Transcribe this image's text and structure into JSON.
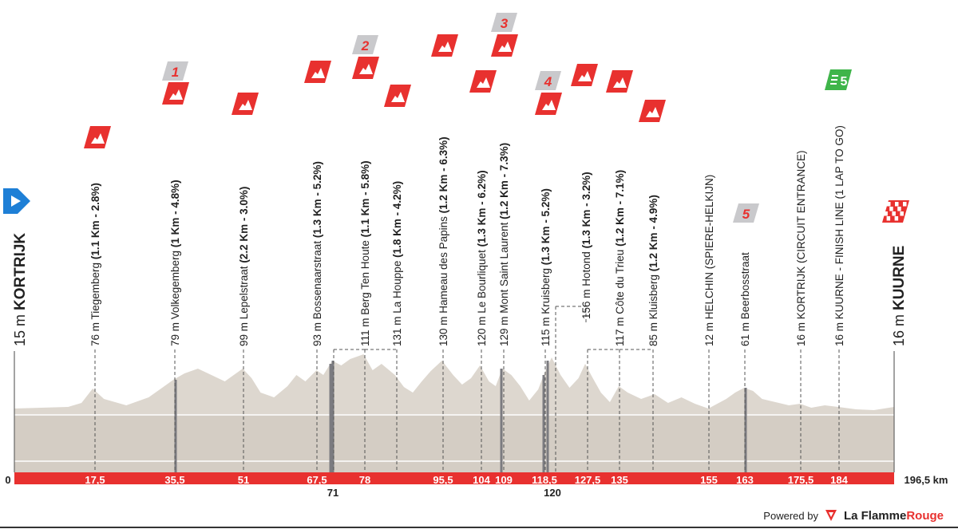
{
  "chart_data": {
    "type": "area",
    "title": "",
    "xlabel": "",
    "ylabel": "",
    "x_unit": "km",
    "xlim": [
      0,
      196.5
    ],
    "km_ticks": [
      "0",
      "17,5",
      "35,5",
      "51",
      "67,5",
      "71",
      "78",
      "95,5",
      "104",
      "109",
      "118,5",
      "120",
      "127,5",
      "135",
      "155",
      "163",
      "175,5",
      "184",
      "196,5 km"
    ],
    "start": {
      "altitude": "15 m",
      "name": "KORTRIJK"
    },
    "finish": {
      "altitude": "16 m",
      "name": "KUURNE"
    },
    "points": [
      {
        "km": 17.5,
        "text": "76 m Tiegemberg",
        "detail": "(1.1 Km - 2.8%)",
        "icon": "climb-flag-icon",
        "badge": ""
      },
      {
        "km": 35.5,
        "text": "79 m Volkegemberg",
        "detail": "(1 Km - 4.8%)",
        "icon": "climb-flag-icon",
        "badge": "1"
      },
      {
        "km": 51,
        "text": "99 m Lepelstraat",
        "detail": "(2.2 Km - 3.0%)",
        "icon": "climb-flag-icon",
        "badge": ""
      },
      {
        "km": 67.5,
        "text": "93 m Bossenaarstraat",
        "detail": "(1.3 Km - 5.2%)",
        "icon": "climb-flag-icon",
        "badge": ""
      },
      {
        "km": 78,
        "text": "111 m Berg Ten Houte",
        "detail": "(1.1 Km - 5.8%)",
        "icon": "climb-flag-icon",
        "badge": "2"
      },
      {
        "km": 85,
        "text": "131 m La Houppe",
        "detail": "(1.8 Km - 4.2%)",
        "icon": "climb-flag-icon",
        "badge": ""
      },
      {
        "km": 95.5,
        "text": "130 m Hameau des Papins",
        "detail": "(1.2 Km - 6.3%)",
        "icon": "climb-flag-icon",
        "badge": ""
      },
      {
        "km": 104,
        "text": "120 m Le Bourliquet",
        "detail": "(1.3 Km - 6.2%)",
        "icon": "climb-flag-icon",
        "badge": ""
      },
      {
        "km": 109,
        "text": "129 m Mont Saint Laurent",
        "detail": "(1.2 Km - 7.3%)",
        "icon": "climb-flag-icon",
        "badge": "3"
      },
      {
        "km": 118.5,
        "text": "115 m Kruisberg",
        "detail": "(1.3 Km - 5.2%)",
        "icon": "climb-flag-icon",
        "badge": "4"
      },
      {
        "km": 120,
        "text": "156 m Hotond",
        "detail": "(1.3 Km - 3.2%)",
        "icon": "climb-flag-icon",
        "badge": ""
      },
      {
        "km": 127.5,
        "text": "117 m Côte du Trieu",
        "detail": "(1.2 Km - 7.1%)",
        "icon": "climb-flag-icon",
        "badge": ""
      },
      {
        "km": 135,
        "text": "85 m Kluisberg",
        "detail": "(1.2 Km - 4.9%)",
        "icon": "climb-flag-icon",
        "badge": ""
      },
      {
        "km": 155,
        "text": "12 m HELCHIN (SPIERE-HELKIJN)",
        "detail": "",
        "icon": "",
        "badge": ""
      },
      {
        "km": 163,
        "text": "61 m Beerbosstraat",
        "detail": "",
        "icon": "",
        "badge": "5"
      },
      {
        "km": 175.5,
        "text": "16 m KORTRIJK (CIRCUIT ENTRANCE)",
        "detail": "",
        "icon": "",
        "badge": ""
      },
      {
        "km": 184,
        "text": "16 m KUURNE - FINISH LINE (1 LAP TO GO)",
        "detail": "",
        "icon": "lap-flag-icon",
        "badge": ""
      }
    ],
    "colors": {
      "profile_fill": "#ddd7cf",
      "profile_base": "#d4cdc4",
      "km_bar": "#e8312f",
      "climb_flag": "#e8312f",
      "badge_bg": "#c9c9cc",
      "badge_text": "#e8312f",
      "start_flag": "#1e7fd6",
      "lap_flag": "#3fb54a",
      "leader_line": "#555555"
    }
  },
  "footer": {
    "powered_by": "Powered by",
    "brand_1": "La Flamme",
    "brand_2": "Rouge"
  }
}
